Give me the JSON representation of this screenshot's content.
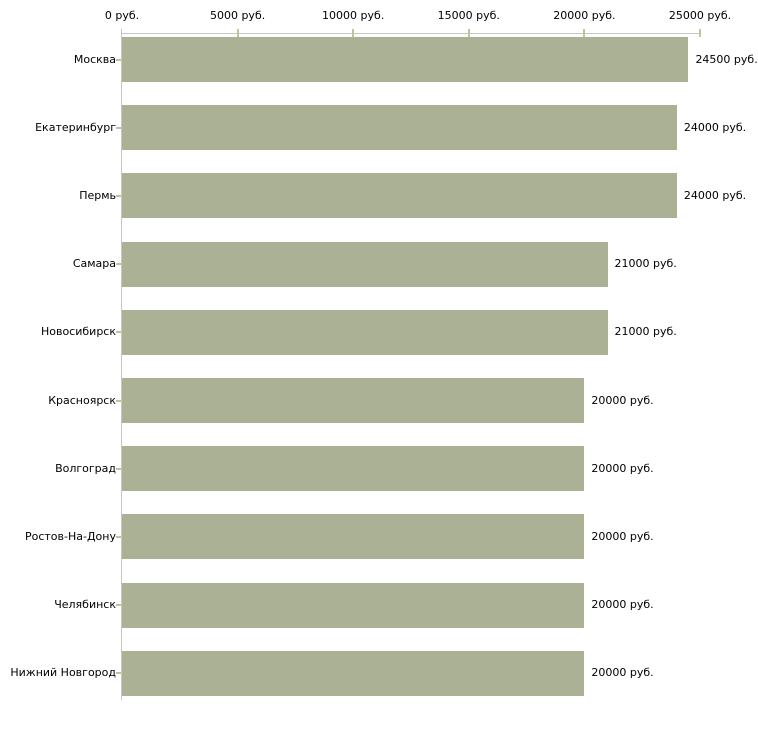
{
  "chart_data": {
    "type": "bar",
    "orientation": "horizontal",
    "title": "",
    "unit": "руб.",
    "xlim": [
      0,
      25000
    ],
    "x_tick_values": [
      0,
      5000,
      10000,
      15000,
      20000,
      25000
    ],
    "x_tick_labels": [
      "0 руб.",
      "5000 руб.",
      "10000 руб.",
      "15000 руб.",
      "20000 руб.",
      "25000 руб."
    ],
    "x_axis_position": "top",
    "grid": false,
    "legend": false,
    "categories": [
      "Москва",
      "Екатеринбург",
      "Пермь",
      "Самара",
      "Новосибирск",
      "Красноярск",
      "Волгоград",
      "Ростов-На-Дону",
      "Челябинск",
      "Нижний Новгород"
    ],
    "values": [
      24500,
      24000,
      24000,
      21000,
      21000,
      20000,
      20000,
      20000,
      20000,
      20000
    ],
    "value_labels": [
      "24500 руб.",
      "24000 руб.",
      "24000 руб.",
      "21000 руб.",
      "21000 руб.",
      "20000 руб.",
      "20000 руб.",
      "20000 руб.",
      "20000 руб.",
      "20000 руб."
    ],
    "colors": {
      "bar": "#abb194",
      "axis_line": "#c6c6c6",
      "tick": "#c3c39b",
      "text": "#000000",
      "background": "#ffffff"
    }
  }
}
